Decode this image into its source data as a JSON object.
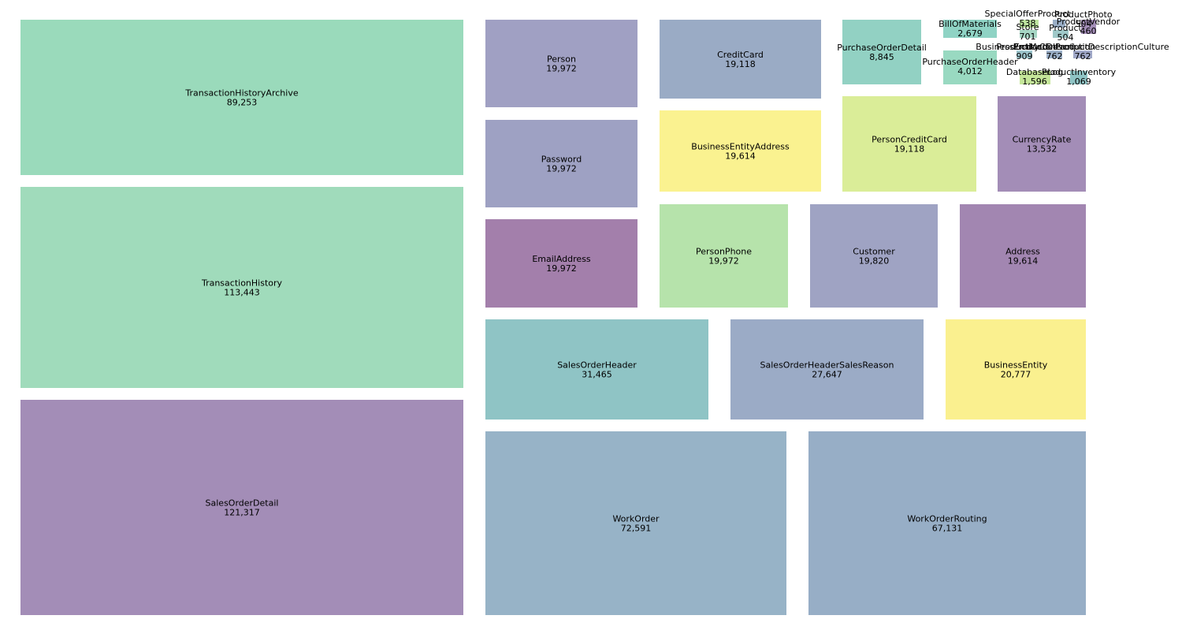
{
  "chart_data": {
    "type": "treemap",
    "title": "",
    "items": [
      {
        "name": "SalesOrderDetail",
        "label": "121,317",
        "value": 121317,
        "color": "#a38db7"
      },
      {
        "name": "TransactionHistory",
        "label": "113,443",
        "value": 113443,
        "color": "#a0dbbb"
      },
      {
        "name": "TransactionHistoryArchive",
        "label": "89,253",
        "value": 89253,
        "color": "#9adabb"
      },
      {
        "name": "WorkOrder",
        "label": "72,591",
        "value": 72591,
        "color": "#97b3c7"
      },
      {
        "name": "WorkOrderRouting",
        "label": "67,131",
        "value": 67131,
        "color": "#97aec6"
      },
      {
        "name": "SalesOrderHeader",
        "label": "31,465",
        "value": 31465,
        "color": "#8fc4c5"
      },
      {
        "name": "SalesOrderHeaderSalesReason",
        "label": "27,647",
        "value": 27647,
        "color": "#9babc6"
      },
      {
        "name": "BusinessEntity",
        "label": "20,777",
        "value": 20777,
        "color": "#faf08f"
      },
      {
        "name": "Person",
        "label": "19,972",
        "value": 19972,
        "color": "#a0a0c3"
      },
      {
        "name": "Password",
        "label": "19,972",
        "value": 19972,
        "color": "#9ea1c3"
      },
      {
        "name": "EmailAddress",
        "label": "19,972",
        "value": 19972,
        "color": "#a37fab"
      },
      {
        "name": "PersonPhone",
        "label": "19,972",
        "value": 19972,
        "color": "#b6e3ab"
      },
      {
        "name": "Customer",
        "label": "19,820",
        "value": 19820,
        "color": "#9fa3c3"
      },
      {
        "name": "Address",
        "label": "19,614",
        "value": 19614,
        "color": "#a286b1"
      },
      {
        "name": "BusinessEntityAddress",
        "label": "19,614",
        "value": 19614,
        "color": "#faf290"
      },
      {
        "name": "CreditCard",
        "label": "19,118",
        "value": 19118,
        "color": "#9aabc5"
      },
      {
        "name": "PersonCreditCard",
        "label": "19,118",
        "value": 19118,
        "color": "#daed98"
      },
      {
        "name": "CurrencyRate",
        "label": "13,532",
        "value": 13532,
        "color": "#a38db7"
      },
      {
        "name": "PurchaseOrderDetail",
        "label": "8,845",
        "value": 8845,
        "color": "#92d1c3"
      },
      {
        "name": "PurchaseOrderHeader",
        "label": "4,012",
        "value": 4012,
        "color": "#99d9c1"
      },
      {
        "name": "BillOfMaterials",
        "label": "2,679",
        "value": 2679,
        "color": "#8fd3c4"
      },
      {
        "name": "DatabaseLog",
        "label": "1,596",
        "value": 1596,
        "color": "#c5e69a"
      },
      {
        "name": "ProductInventory",
        "label": "1,069",
        "value": 1069,
        "color": "#8fc4c5"
      },
      {
        "name": "BusinessEntityContact",
        "label": "909",
        "value": 909,
        "color": "#9cc4cc"
      },
      {
        "name": "ProductModelProductDescriptionCulture",
        "label": "762",
        "value": 762,
        "color": "#a0a8c8"
      },
      {
        "name": "ProductDescription",
        "label": "762",
        "value": 762,
        "color": "#9cb0c8"
      },
      {
        "name": "Store",
        "label": "701",
        "value": 701,
        "color": "#a6d6c4"
      },
      {
        "name": "SpecialOfferProduct",
        "label": "538",
        "value": 538,
        "color": "#bfe6a0"
      },
      {
        "name": "ProductPhoto",
        "label": "504",
        "value": 504,
        "color": "#9aaec6"
      },
      {
        "name": "ProductVendor",
        "label": "460",
        "value": 460,
        "color": "#a38db7"
      },
      {
        "name": "Product",
        "label": "504",
        "value": 504,
        "color": "#9fc9c9"
      }
    ]
  }
}
